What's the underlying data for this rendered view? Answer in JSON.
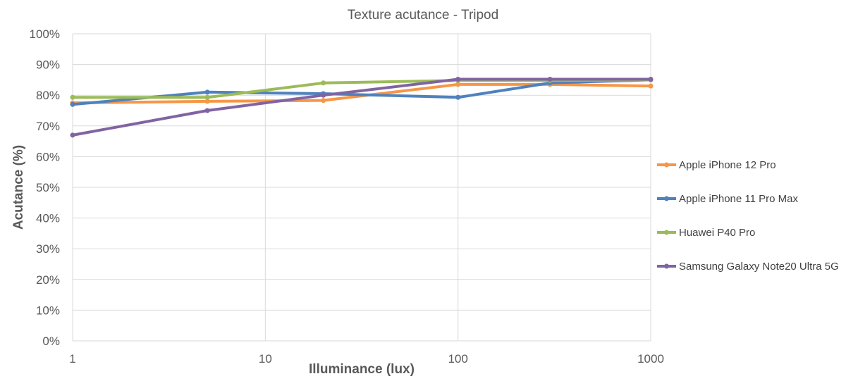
{
  "chart_data": {
    "type": "line",
    "title": "Texture acutance - Tripod",
    "xlabel": "Illuminance (lux)",
    "ylabel": "Acutance (%)",
    "x_scale": "log",
    "xlim": [
      1,
      1000
    ],
    "ylim": [
      0,
      100
    ],
    "x_ticks": [
      "1",
      "10",
      "100",
      "1000"
    ],
    "y_ticks": [
      "0%",
      "10%",
      "20%",
      "30%",
      "40%",
      "50%",
      "60%",
      "70%",
      "80%",
      "90%",
      "100%"
    ],
    "grid": true,
    "legend_position": "right",
    "series": [
      {
        "name": "Apple iPhone 12 Pro",
        "color": "#F79646",
        "x": [
          1,
          5,
          20,
          100,
          300,
          1000
        ],
        "y": [
          77.5,
          78,
          78.3,
          83.5,
          83.5,
          83
        ]
      },
      {
        "name": "Apple iPhone 11 Pro Max",
        "color": "#4F81BD",
        "x": [
          1,
          5,
          20,
          100,
          300,
          1000
        ],
        "y": [
          77,
          81,
          80.5,
          79.3,
          84,
          85
        ]
      },
      {
        "name": "Huawei P40 Pro",
        "color": "#9BBB59",
        "x": [
          1,
          5,
          20,
          100,
          300,
          1000
        ],
        "y": [
          79.3,
          79.3,
          84,
          84.8,
          84.8,
          85
        ]
      },
      {
        "name": "Samsung Galaxy Note20 Ultra 5G",
        "color": "#8064A2",
        "x": [
          1,
          5,
          20,
          100,
          300,
          1000
        ],
        "y": [
          67,
          75,
          80,
          85.2,
          85.2,
          85.2
        ]
      }
    ]
  }
}
